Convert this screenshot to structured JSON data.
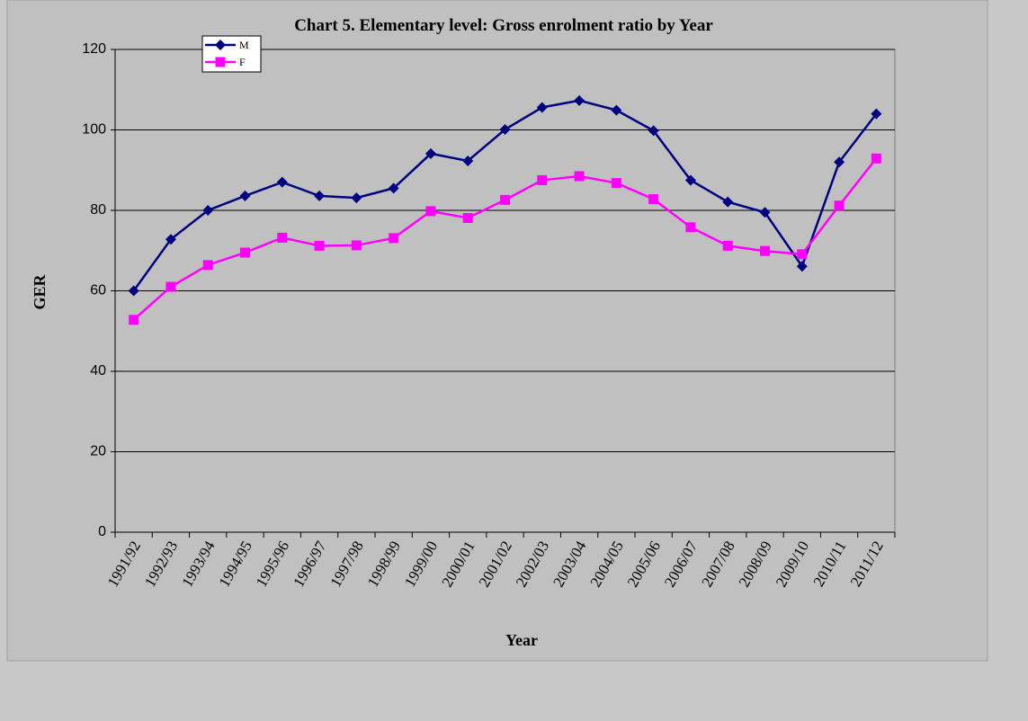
{
  "chart_data": {
    "type": "line",
    "title": "Chart 5.  Elementary level: Gross enrolment ratio by  Year",
    "xlabel": "Year",
    "ylabel": "GER",
    "categories": [
      "1991/92",
      "1992/93",
      "1993/94",
      "1994/95",
      "1995/96",
      "1996/97",
      "1997/98",
      "1998/99",
      "1999/00",
      "2000/01",
      "2001/02",
      "2002/03",
      "2003/04",
      "2004/05",
      "2005/06",
      "2006/07",
      "2007/08",
      "2008/09",
      "2009/10",
      "2010/11",
      "2011/12"
    ],
    "series": [
      {
        "name": "M",
        "color": "#000080",
        "marker": "diamond",
        "values": [
          60,
          72.8,
          80,
          83.6,
          87,
          83.6,
          83.1,
          85.5,
          94.1,
          92.3,
          100.1,
          105.6,
          107.3,
          104.9,
          99.8,
          87.5,
          82.1,
          79.5,
          66.1,
          92,
          104
        ]
      },
      {
        "name": "F",
        "color": "#ff00ff",
        "marker": "square",
        "values": [
          52.8,
          61,
          66.4,
          69.5,
          73.2,
          71.2,
          71.3,
          73.1,
          79.8,
          78.1,
          82.6,
          87.5,
          88.5,
          86.8,
          82.8,
          75.8,
          71.2,
          69.9,
          69.1,
          81.2,
          92.9
        ]
      }
    ],
    "ylim": [
      0,
      120
    ],
    "yticks": [
      0,
      20,
      40,
      60,
      80,
      100,
      120
    ],
    "grid": true,
    "legend": "upper left"
  }
}
